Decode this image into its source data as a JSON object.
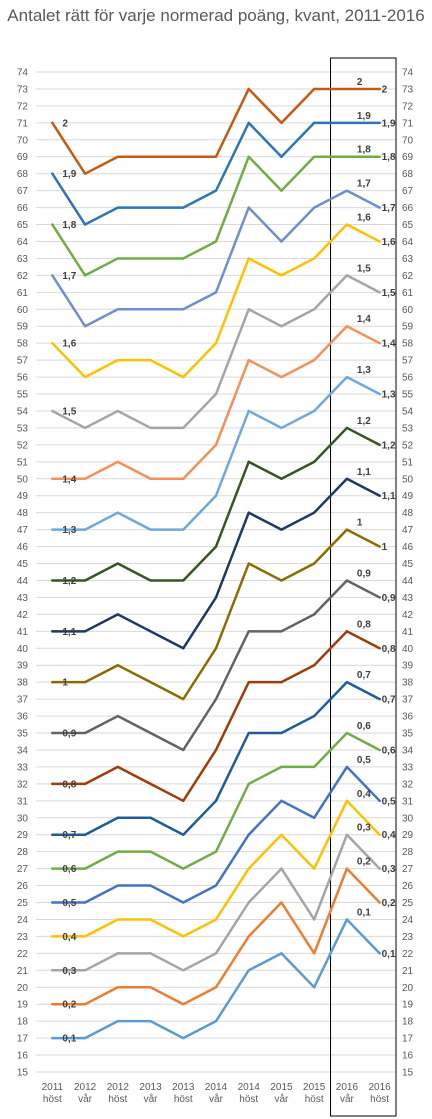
{
  "chart_data": {
    "type": "line",
    "title": "Antalet rätt för varje normerad poäng, kvant, 2011-2016",
    "categories": [
      [
        "2011",
        "höst"
      ],
      [
        "2012",
        "vår"
      ],
      [
        "2012",
        "höst"
      ],
      [
        "2013",
        "vår"
      ],
      [
        "2013",
        "höst"
      ],
      [
        "2014",
        "vår"
      ],
      [
        "2014",
        "höst"
      ],
      [
        "2015",
        "vår"
      ],
      [
        "2015",
        "höst"
      ],
      [
        "2016",
        "vår"
      ],
      [
        "2016",
        "höst"
      ]
    ],
    "ylim": [
      15,
      74
    ],
    "y_ticks": [
      15,
      16,
      17,
      18,
      19,
      20,
      21,
      22,
      23,
      24,
      25,
      26,
      27,
      28,
      29,
      30,
      31,
      32,
      33,
      34,
      35,
      36,
      37,
      38,
      39,
      40,
      41,
      42,
      43,
      44,
      45,
      46,
      47,
      48,
      49,
      50,
      51,
      52,
      53,
      54,
      55,
      56,
      57,
      58,
      59,
      60,
      61,
      62,
      63,
      64,
      65,
      66,
      67,
      68,
      69,
      70,
      71,
      72,
      73,
      74
    ],
    "y_axis_both_sides": true,
    "grid": true,
    "highlight_box": "2016 vår – 2016 höst",
    "series": [
      {
        "name": "2",
        "color": "#c55a11",
        "values": [
          71,
          68,
          69,
          69,
          69,
          69,
          73,
          71,
          73,
          73,
          73
        ]
      },
      {
        "name": "1,9",
        "color": "#2e75b6",
        "values": [
          68,
          65,
          66,
          66,
          66,
          67,
          71,
          69,
          71,
          71,
          71
        ]
      },
      {
        "name": "1,8",
        "color": "#70ad47",
        "values": [
          65,
          62,
          63,
          63,
          63,
          64,
          69,
          67,
          69,
          69,
          69
        ]
      },
      {
        "name": "1,7",
        "color": "#6f8fcf",
        "values": [
          62,
          59,
          60,
          60,
          60,
          61,
          66,
          64,
          66,
          67,
          66
        ]
      },
      {
        "name": "1,6",
        "color": "#ffc000",
        "values": [
          58,
          56,
          57,
          57,
          56,
          58,
          63,
          62,
          63,
          65,
          64
        ]
      },
      {
        "name": "1,5",
        "color": "#a5a5a5",
        "values": [
          54,
          53,
          54,
          53,
          53,
          55,
          60,
          59,
          60,
          62,
          61
        ]
      },
      {
        "name": "1,4",
        "color": "#f4905a",
        "values": [
          50,
          50,
          51,
          50,
          50,
          52,
          57,
          56,
          57,
          59,
          58
        ]
      },
      {
        "name": "1,3",
        "color": "#6fa8dc",
        "values": [
          47,
          47,
          48,
          47,
          47,
          49,
          54,
          53,
          54,
          56,
          55
        ]
      },
      {
        "name": "1,2",
        "color": "#375623",
        "values": [
          44,
          44,
          45,
          44,
          44,
          46,
          51,
          50,
          51,
          53,
          52
        ]
      },
      {
        "name": "1,1",
        "color": "#1f3864",
        "values": [
          41,
          41,
          42,
          41,
          40,
          43,
          48,
          47,
          48,
          50,
          49
        ]
      },
      {
        "name": "1",
        "color": "#8a6d00",
        "values": [
          38,
          38,
          39,
          38,
          37,
          40,
          45,
          44,
          45,
          47,
          46
        ]
      },
      {
        "name": "0,9",
        "color": "#636363",
        "values": [
          35,
          35,
          36,
          35,
          34,
          37,
          41,
          41,
          42,
          44,
          43
        ]
      },
      {
        "name": "0,8",
        "color": "#9e3d0a",
        "values": [
          32,
          32,
          33,
          32,
          31,
          34,
          38,
          38,
          39,
          41,
          40
        ]
      },
      {
        "name": "0,7",
        "color": "#1f5c99",
        "values": [
          29,
          29,
          30,
          30,
          29,
          31,
          35,
          35,
          36,
          38,
          37
        ]
      },
      {
        "name": "0,6",
        "color": "#70ad47",
        "values": [
          27,
          27,
          28,
          28,
          27,
          28,
          32,
          33,
          33,
          35,
          34
        ]
      },
      {
        "name": "0,5",
        "color": "#4472c4",
        "values": [
          25,
          25,
          26,
          26,
          25,
          26,
          29,
          31,
          30,
          33,
          31
        ]
      },
      {
        "name": "0,4",
        "color": "#ffc000",
        "values": [
          23,
          23,
          24,
          24,
          23,
          24,
          27,
          29,
          27,
          31,
          29
        ]
      },
      {
        "name": "0,3",
        "color": "#a5a5a5",
        "values": [
          21,
          21,
          22,
          22,
          21,
          22,
          25,
          27,
          24,
          29,
          27
        ]
      },
      {
        "name": "0,2",
        "color": "#ed7d31",
        "values": [
          19,
          19,
          20,
          20,
          19,
          20,
          23,
          25,
          22,
          27,
          25
        ]
      },
      {
        "name": "0,1",
        "color": "#5b9bd5",
        "values": [
          17,
          17,
          18,
          18,
          17,
          18,
          21,
          22,
          20,
          24,
          22
        ]
      }
    ]
  }
}
